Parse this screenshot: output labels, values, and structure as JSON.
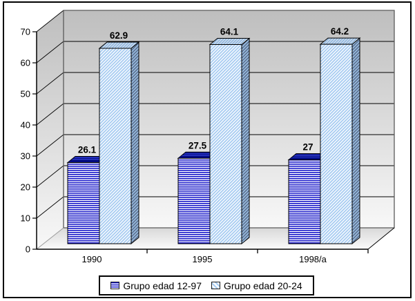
{
  "chart_data": {
    "type": "bar",
    "style": "3d-clustered-column",
    "categories": [
      "1990",
      "1995",
      "1998/a"
    ],
    "series": [
      {
        "name": "Grupo edad 12-97",
        "values": [
          26.1,
          27.5,
          27
        ],
        "labels": [
          "26.1",
          "27.5",
          "27"
        ]
      },
      {
        "name": "Grupo edad 20-24",
        "values": [
          62.9,
          64.1,
          64.2
        ],
        "labels": [
          "62.9",
          "64.1",
          "64.2"
        ]
      }
    ],
    "title": "",
    "xlabel": "",
    "ylabel": "",
    "y_axis": {
      "min": 0,
      "max": 70,
      "step": 10,
      "tick_labels": [
        "0",
        "10",
        "20",
        "30",
        "40",
        "50",
        "60",
        "70"
      ]
    },
    "grid": true,
    "legend_position": "bottom"
  },
  "legend": {
    "items": [
      {
        "label": "Grupo edad 12-97",
        "swatch": "blue-horizontal-stripes"
      },
      {
        "label": "Grupo edad 20-24",
        "swatch": "lightblue-diagonal-hatch"
      }
    ]
  },
  "colors": {
    "s1_stripe": "#1717C9",
    "s1_top_bg": "#3340D8",
    "s1_top_stripe": "#00087A",
    "s1_band": "#000A80",
    "s2_stripe": "#A9CDF2",
    "s2_top_bg": "#D7E3F0",
    "s2_top_stripe": "#8FB6DE",
    "s2_side_bg": "#5E7190",
    "s2_side_stripe": "#9CC2E6",
    "wall_top": "#BEBEBE",
    "wall_bottom": "#F8F8F8",
    "floor_back": "#D8D8D8",
    "floor_front": "#FBFBFB",
    "grid_line": "#000000",
    "edge": "#5a5a5a",
    "text": "#000000",
    "outline": "#000000"
  }
}
